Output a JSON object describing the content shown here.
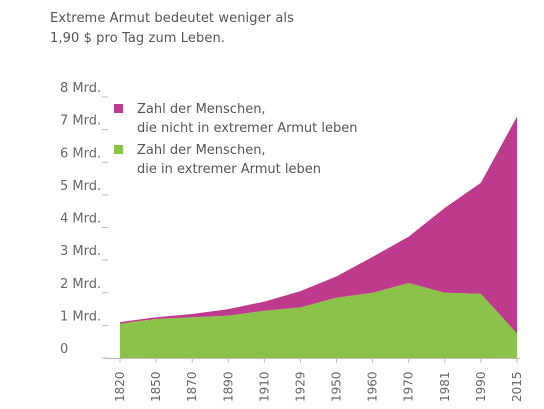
{
  "subtitle": "Extreme Armut bedeutet weniger als\n1,90 $ pro Tag zum Leben.",
  "chart_data": {
    "type": "area",
    "stacked": true,
    "x": [
      "1820",
      "1850",
      "1870",
      "1890",
      "1910",
      "1929",
      "1950",
      "1960",
      "1970",
      "1981",
      "1990",
      "2015"
    ],
    "series": [
      {
        "name": "Zahl der Menschen,\ndie in extremer Armut leben",
        "color": "#8bc34a",
        "values": [
          1.05,
          1.2,
          1.25,
          1.3,
          1.45,
          1.55,
          1.85,
          2.0,
          2.3,
          2.0,
          1.97,
          0.75
        ]
      },
      {
        "name": "Zahl der Menschen,\ndie nicht in extremer Armut leben",
        "color": "#be3a8c",
        "values": [
          0.05,
          0.05,
          0.1,
          0.2,
          0.28,
          0.5,
          0.65,
          1.1,
          1.42,
          2.6,
          3.4,
          6.65
        ]
      }
    ],
    "y_ticks": [
      "0",
      "1 Mrd.",
      "2 Mrd.",
      "3 Mrd.",
      "4 Mrd.",
      "5 Mrd.",
      "6 Mrd.",
      "7 Mrd.",
      "8 Mrd."
    ],
    "ylim": [
      0,
      8
    ],
    "grid": false,
    "legend_position": "top-left",
    "legend": [
      {
        "label_line1": "Zahl der Menschen,",
        "label_line2": "die nicht in extremer Armut leben",
        "color": "#be3a8c"
      },
      {
        "label_line1": "Zahl der Menschen,",
        "label_line2": "die in extremer Armut leben",
        "color": "#8bc34a"
      }
    ]
  }
}
